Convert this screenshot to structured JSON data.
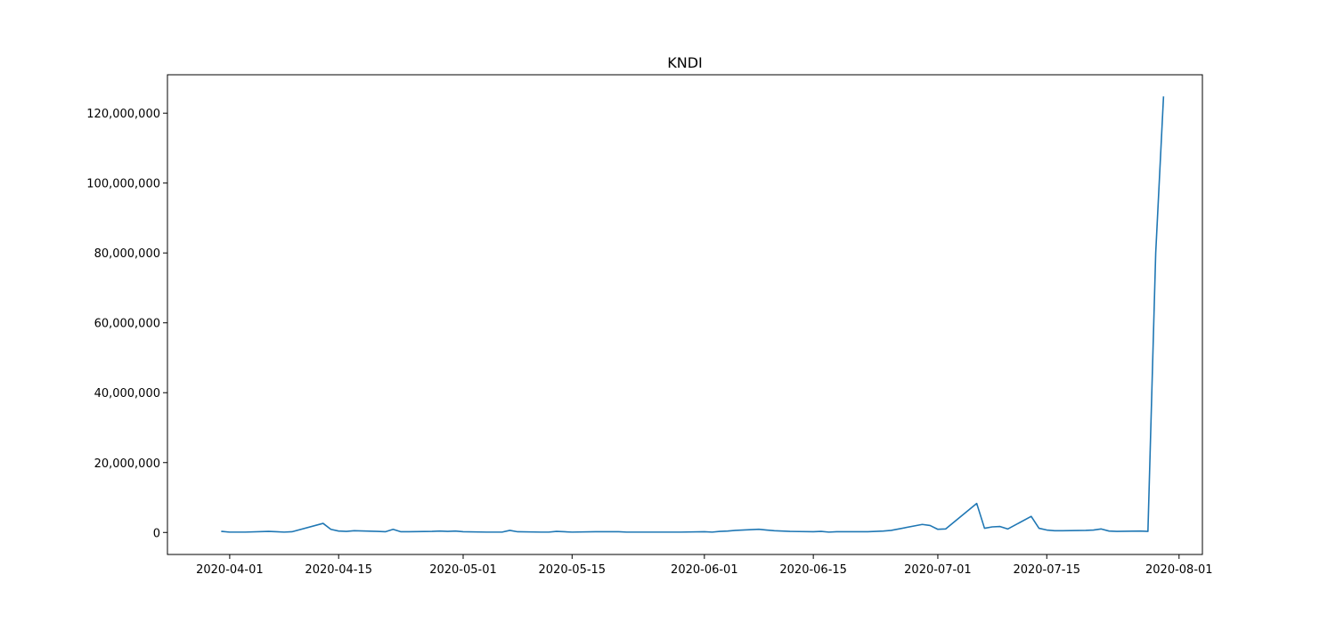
{
  "chart_data": {
    "type": "line",
    "title": "KNDI",
    "xlabel": "",
    "ylabel": "",
    "x_ticks": [
      "2020-04-01",
      "2020-04-15",
      "2020-05-01",
      "2020-05-15",
      "2020-06-01",
      "2020-06-15",
      "2020-07-01",
      "2020-07-15",
      "2020-08-01"
    ],
    "y_ticks": [
      "0",
      "20,000,000",
      "40,000,000",
      "60,000,000",
      "80,000,000",
      "100,000,000",
      "120,000,000"
    ],
    "xlim": [
      "2020-03-24",
      "2020-08-04"
    ],
    "ylim": [
      -6300000,
      131000000
    ],
    "grid": false,
    "series": [
      {
        "color": "#1f77b4",
        "points": [
          [
            "2020-03-31",
            300000
          ],
          [
            "2020-04-01",
            100000
          ],
          [
            "2020-04-02",
            100000
          ],
          [
            "2020-04-03",
            100000
          ],
          [
            "2020-04-06",
            300000
          ],
          [
            "2020-04-07",
            200000
          ],
          [
            "2020-04-08",
            100000
          ],
          [
            "2020-04-09",
            200000
          ],
          [
            "2020-04-13",
            2600000
          ],
          [
            "2020-04-14",
            900000
          ],
          [
            "2020-04-15",
            400000
          ],
          [
            "2020-04-16",
            300000
          ],
          [
            "2020-04-17",
            500000
          ],
          [
            "2020-04-20",
            300000
          ],
          [
            "2020-04-21",
            200000
          ],
          [
            "2020-04-22",
            900000
          ],
          [
            "2020-04-23",
            200000
          ],
          [
            "2020-04-24",
            200000
          ],
          [
            "2020-04-27",
            300000
          ],
          [
            "2020-04-28",
            400000
          ],
          [
            "2020-04-29",
            300000
          ],
          [
            "2020-04-30",
            400000
          ],
          [
            "2020-05-01",
            200000
          ],
          [
            "2020-05-04",
            100000
          ],
          [
            "2020-05-05",
            100000
          ],
          [
            "2020-05-06",
            100000
          ],
          [
            "2020-05-07",
            600000
          ],
          [
            "2020-05-08",
            200000
          ],
          [
            "2020-05-11",
            100000
          ],
          [
            "2020-05-12",
            100000
          ],
          [
            "2020-05-13",
            300000
          ],
          [
            "2020-05-14",
            200000
          ],
          [
            "2020-05-15",
            100000
          ],
          [
            "2020-05-18",
            200000
          ],
          [
            "2020-05-19",
            200000
          ],
          [
            "2020-05-20",
            200000
          ],
          [
            "2020-05-21",
            200000
          ],
          [
            "2020-05-22",
            100000
          ],
          [
            "2020-05-26",
            100000
          ],
          [
            "2020-05-27",
            100000
          ],
          [
            "2020-05-28",
            100000
          ],
          [
            "2020-05-29",
            100000
          ],
          [
            "2020-06-01",
            200000
          ],
          [
            "2020-06-02",
            100000
          ],
          [
            "2020-06-03",
            300000
          ],
          [
            "2020-06-04",
            400000
          ],
          [
            "2020-06-05",
            600000
          ],
          [
            "2020-06-08",
            900000
          ],
          [
            "2020-06-09",
            700000
          ],
          [
            "2020-06-10",
            500000
          ],
          [
            "2020-06-11",
            400000
          ],
          [
            "2020-06-12",
            300000
          ],
          [
            "2020-06-15",
            200000
          ],
          [
            "2020-06-16",
            300000
          ],
          [
            "2020-06-17",
            100000
          ],
          [
            "2020-06-18",
            200000
          ],
          [
            "2020-06-19",
            200000
          ],
          [
            "2020-06-22",
            200000
          ],
          [
            "2020-06-23",
            300000
          ],
          [
            "2020-06-24",
            400000
          ],
          [
            "2020-06-25",
            600000
          ],
          [
            "2020-06-29",
            2300000
          ],
          [
            "2020-06-30",
            2000000
          ],
          [
            "2020-07-01",
            900000
          ],
          [
            "2020-07-02",
            1000000
          ],
          [
            "2020-07-06",
            8300000
          ],
          [
            "2020-07-07",
            1200000
          ],
          [
            "2020-07-08",
            1600000
          ],
          [
            "2020-07-09",
            1700000
          ],
          [
            "2020-07-10",
            1000000
          ],
          [
            "2020-07-13",
            4600000
          ],
          [
            "2020-07-14",
            1200000
          ],
          [
            "2020-07-15",
            700000
          ],
          [
            "2020-07-16",
            500000
          ],
          [
            "2020-07-17",
            500000
          ],
          [
            "2020-07-20",
            600000
          ],
          [
            "2020-07-21",
            700000
          ],
          [
            "2020-07-22",
            1000000
          ],
          [
            "2020-07-23",
            400000
          ],
          [
            "2020-07-24",
            300000
          ],
          [
            "2020-07-27",
            400000
          ],
          [
            "2020-07-28",
            300000
          ],
          [
            "2020-07-29",
            80000000
          ],
          [
            "2020-07-30",
            124600000
          ]
        ]
      }
    ]
  }
}
